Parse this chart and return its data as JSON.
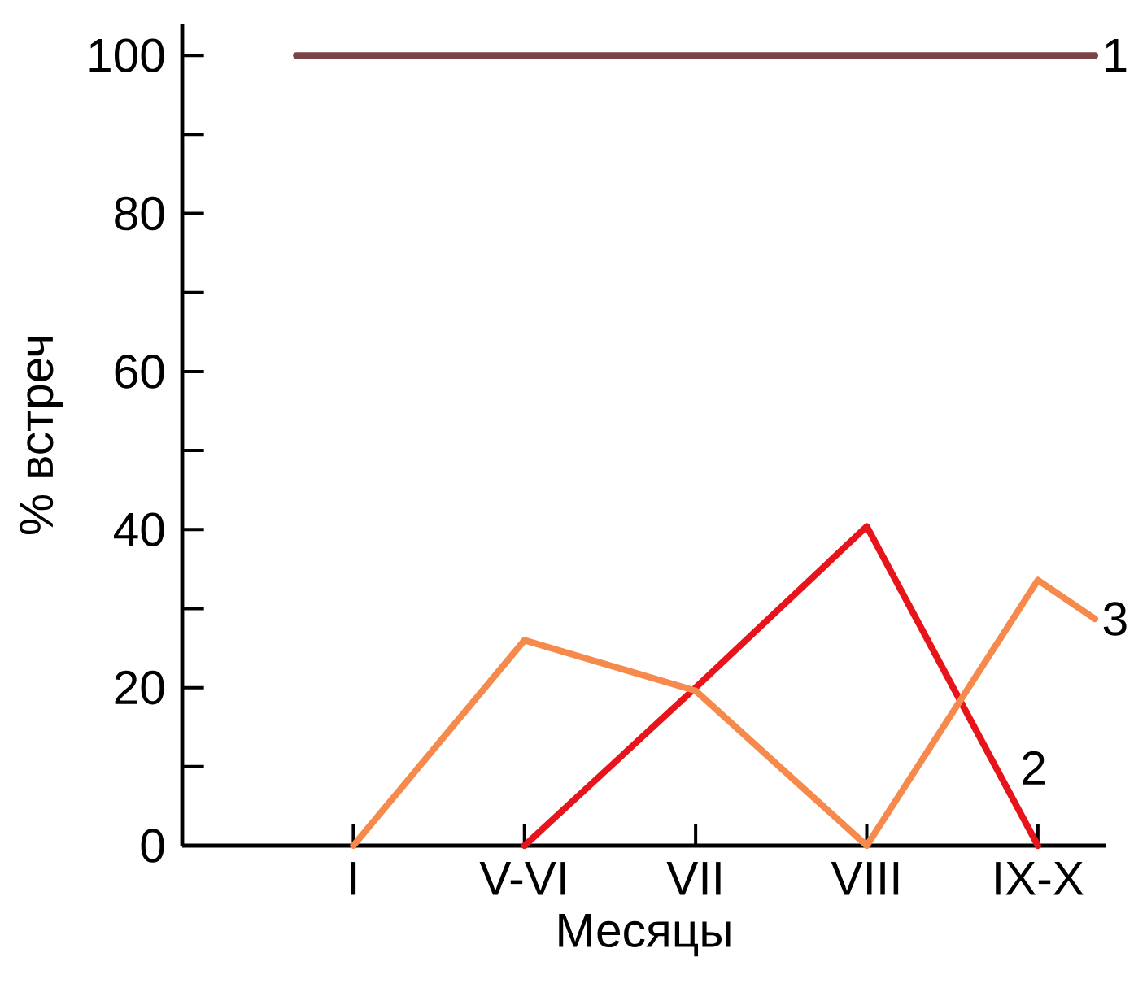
{
  "chart_data": {
    "type": "line",
    "xlabel": "Месяцы",
    "ylabel": "% встреч",
    "categories": [
      null,
      "I",
      null,
      null,
      "V-VI",
      null,
      null,
      "VII",
      null,
      null,
      "VIII",
      null,
      null,
      "IX-X",
      null
    ],
    "ylim": [
      0,
      104
    ],
    "yticks": [
      0,
      20,
      40,
      60,
      80,
      100
    ],
    "series": [
      {
        "name": "1",
        "color": "#7b4444",
        "values": [
          100,
          null,
          null,
          null,
          null,
          null,
          null,
          null,
          null,
          null,
          null,
          null,
          null,
          null,
          100
        ]
      },
      {
        "name": "2",
        "color": "#e8141b",
        "values": [
          null,
          null,
          null,
          null,
          0,
          null,
          null,
          20,
          null,
          null,
          40.4,
          null,
          null,
          0,
          null
        ]
      },
      {
        "name": "3",
        "color": "#f58a4c",
        "values": [
          null,
          0,
          null,
          null,
          26,
          null,
          null,
          19.6,
          null,
          null,
          0,
          null,
          null,
          33.6,
          28.7
        ]
      }
    ]
  }
}
